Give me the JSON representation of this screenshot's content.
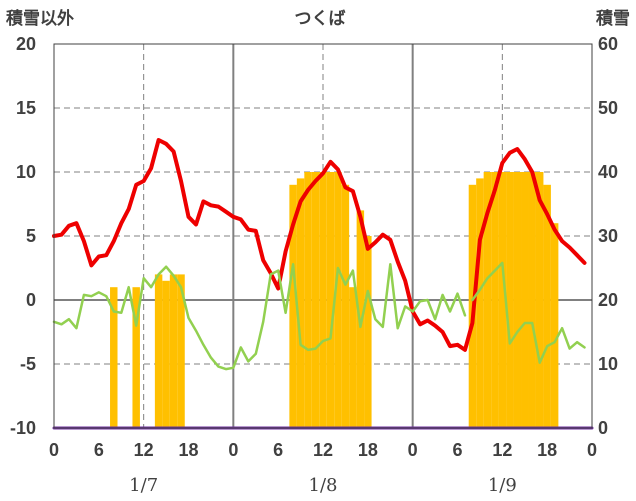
{
  "chart_data": {
    "type": "line",
    "title": "つくば",
    "y_left_label": "積雪以外",
    "y_right_label": "積雪",
    "ylim_left": [
      -10,
      20
    ],
    "ylim_right": [
      0,
      60
    ],
    "xlim": [
      0,
      72
    ],
    "x_tick_labels": [
      "0",
      "6",
      "12",
      "18",
      "0",
      "6",
      "12",
      "18",
      "0",
      "6",
      "12",
      "18",
      "0"
    ],
    "y_left_ticks": [
      "20",
      "15",
      "10",
      "5",
      "0",
      "-5",
      "-10"
    ],
    "y_right_ticks": [
      "60",
      "50",
      "40",
      "30",
      "20",
      "10",
      "0"
    ],
    "date_labels": [
      {
        "label": "1/7",
        "x": 12
      },
      {
        "label": "1/8",
        "x": 36
      },
      {
        "label": "1/9",
        "x": 60
      }
    ],
    "colors": {
      "red": "#ee0000",
      "green": "#92d050",
      "snow": "#ffc000",
      "purple": "#7030a0",
      "grid": "#808080",
      "axis": "#404040"
    },
    "series": [
      {
        "color": "#ee0000",
        "axis": "left",
        "x": [
          0,
          1,
          2,
          3,
          4,
          5,
          6,
          7,
          8,
          9,
          10,
          11,
          12,
          13,
          14,
          15,
          16,
          17,
          18,
          19,
          20,
          21,
          22,
          23,
          24,
          25,
          26,
          27,
          28,
          29,
          30,
          31,
          32,
          33,
          34,
          35,
          36,
          37,
          38,
          39,
          40,
          41,
          42,
          43,
          44,
          45,
          46,
          47,
          48,
          49,
          50,
          51,
          52,
          53,
          54,
          55,
          56,
          57,
          58,
          59,
          60,
          61,
          62,
          63,
          64,
          65,
          66,
          67,
          68,
          69,
          70,
          71
        ],
        "values": [
          5.0,
          5.1,
          5.8,
          6.0,
          4.6,
          2.7,
          3.4,
          3.5,
          4.6,
          6.0,
          7.1,
          9.0,
          9.3,
          10.3,
          12.5,
          12.2,
          11.6,
          9.3,
          6.5,
          5.9,
          7.7,
          7.4,
          7.3,
          6.9,
          6.5,
          6.3,
          5.5,
          5.4,
          3.1,
          2.1,
          0.9,
          3.8,
          5.9,
          7.7,
          8.6,
          9.3,
          9.9,
          10.8,
          10.2,
          8.8,
          8.5,
          6.5,
          4.0,
          4.5,
          5.1,
          4.7,
          3.0,
          1.5,
          -0.9,
          -1.9,
          -1.6,
          -2.0,
          -2.5,
          -3.6,
          -3.5,
          -3.9,
          -1.8,
          4.7,
          6.8,
          8.6,
          10.7,
          11.5,
          11.8,
          11.0,
          10.0,
          7.8,
          6.7,
          5.5,
          4.6,
          4.1,
          3.5,
          2.9
        ]
      },
      {
        "color": "#92d050",
        "axis": "left",
        "x": [
          0,
          1,
          2,
          3,
          4,
          5,
          6,
          7,
          8,
          9,
          10,
          11,
          12,
          13,
          14,
          15,
          16,
          17,
          18,
          19,
          20,
          21,
          22,
          23,
          24,
          25,
          26,
          27,
          28,
          29,
          30,
          31,
          32,
          33,
          34,
          35,
          36,
          37,
          38,
          39,
          40,
          41,
          42,
          43,
          44,
          45,
          46,
          47,
          48,
          49,
          50,
          51,
          52,
          53,
          54,
          55,
          56
        ],
        "values": [
          -1.7,
          -1.9,
          -1.5,
          -2.2,
          0.4,
          0.3,
          0.6,
          0.3,
          -0.9,
          -1.0,
          1.0,
          -2.0,
          1.7,
          1.0,
          2.0,
          2.6,
          1.9,
          1.0,
          -1.4,
          -2.4,
          -3.5,
          -4.5,
          -5.2,
          -5.4,
          -5.3,
          -3.7,
          -4.8,
          -4.2,
          -1.7,
          2.0,
          2.3,
          -1.0,
          2.8,
          -3.5,
          -3.9,
          -3.8,
          -3.2,
          -3.0,
          2.5,
          1.2,
          2.3,
          -2.1,
          0.7,
          -1.5,
          -2.1,
          2.8,
          -2.2,
          -0.5,
          -0.9,
          -0.1,
          0.0,
          -1.5,
          0.4,
          -0.9,
          0.5,
          -1.2,
          null
        ]
      },
      {
        "color": "#92d050",
        "axis": "left",
        "x": [
          56,
          57,
          58,
          59,
          60,
          61,
          62,
          63,
          64,
          65,
          66,
          67,
          68,
          69,
          70,
          71
        ],
        "values": [
          0.0,
          0.8,
          1.7,
          2.3,
          2.9,
          -3.4,
          -2.5,
          -1.8,
          -1.8,
          -4.9,
          -3.6,
          -3.3,
          -2.2,
          -3.8,
          -3.3,
          -3.7
        ]
      },
      {
        "color": "#7030a0",
        "axis": "right",
        "x": [
          0,
          72
        ],
        "values": [
          0,
          0
        ]
      }
    ],
    "bars": {
      "color": "#ffc000",
      "axis": "right",
      "x": [
        8,
        11,
        14,
        15,
        16,
        17,
        32,
        33,
        34,
        35,
        36,
        37,
        38,
        39,
        40,
        41,
        42,
        56,
        57,
        58,
        59,
        60,
        61,
        62,
        63,
        64,
        65,
        66,
        67
      ],
      "values": [
        22,
        22,
        24,
        23,
        24,
        24,
        38,
        39,
        40,
        40,
        40,
        40,
        40,
        38,
        22,
        34,
        30,
        38,
        39,
        40,
        40,
        40,
        40,
        40,
        40,
        40,
        40,
        38,
        32
      ]
    }
  }
}
